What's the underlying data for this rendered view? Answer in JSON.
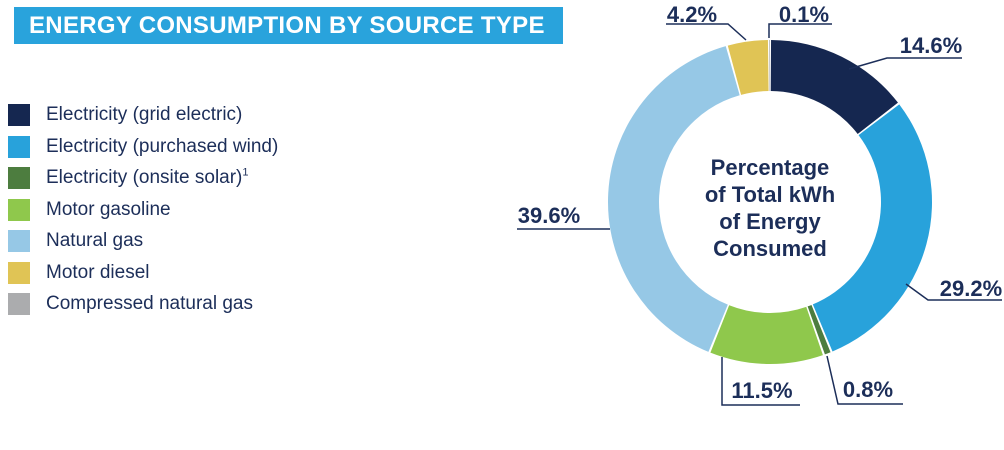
{
  "header": {
    "title": "ENERGY CONSUMPTION BY SOURCE TYPE",
    "background": "#29A3DC",
    "text_color": "#FFFFFF"
  },
  "legend": {
    "items": [
      {
        "label": "Electricity (grid electric)",
        "color": "#152750"
      },
      {
        "label": "Electricity (purchased wind)",
        "color": "#28A2DB"
      },
      {
        "label": "Electricity (onsite solar)",
        "sup": "1",
        "color": "#4D7D3F"
      },
      {
        "label": "Motor gasoline",
        "color": "#8FC84C"
      },
      {
        "label": "Natural gas",
        "color": "#96C8E6"
      },
      {
        "label": "Motor diesel",
        "color": "#E0C455"
      },
      {
        "label": "Compressed natural gas",
        "color": "#ABACAE"
      }
    ]
  },
  "chart_data": {
    "type": "pie",
    "subtype": "donut",
    "title": "Energy Consumption by Source Type",
    "center_label": {
      "lines": [
        "Percentage",
        "of Total kWh",
        "of Energy",
        "Consumed"
      ]
    },
    "start_angle_deg": 0,
    "direction": "clockwise",
    "text_color": "#1C2E59",
    "series": [
      {
        "name": "Electricity (grid electric)",
        "value": 14.6,
        "label": "14.6%",
        "color": "#152750"
      },
      {
        "name": "Electricity (purchased wind)",
        "value": 29.2,
        "label": "29.2%",
        "color": "#28A2DB"
      },
      {
        "name": "Electricity (onsite solar)",
        "value": 0.8,
        "label": "0.8%",
        "color": "#4D7D3F"
      },
      {
        "name": "Motor gasoline",
        "value": 11.5,
        "label": "11.5%",
        "color": "#8FC84C"
      },
      {
        "name": "Natural gas",
        "value": 39.6,
        "label": "39.6%",
        "color": "#96C8E6"
      },
      {
        "name": "Motor diesel",
        "value": 4.2,
        "label": "4.2%",
        "color": "#E0C455"
      },
      {
        "name": "Compressed natural gas",
        "value": 0.1,
        "label": "0.1%",
        "color": "#ABACAE"
      }
    ]
  }
}
